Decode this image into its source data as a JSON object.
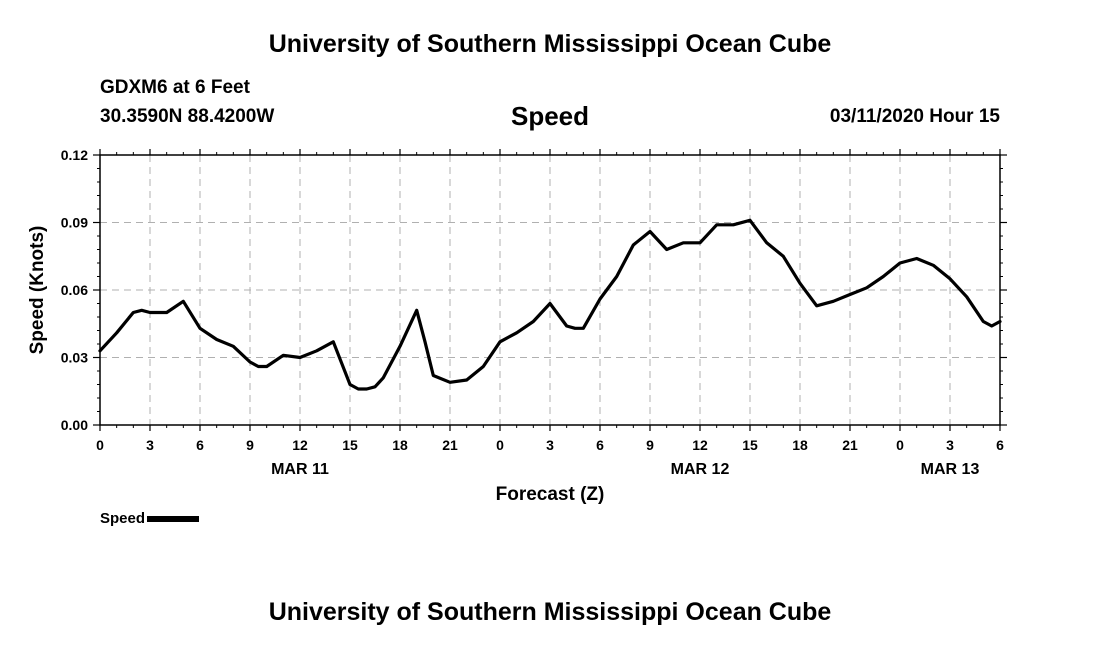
{
  "header": {
    "title_top": "University of Southern Mississippi Ocean Cube",
    "station": "GDXM6 at 6 Feet",
    "coords": "30.3590N 88.4200W",
    "variable": "Speed",
    "datetime": "03/11/2020 Hour 15"
  },
  "footer": {
    "title_bottom": "University of Southern Mississippi Ocean Cube"
  },
  "legend": {
    "label": "Speed"
  },
  "colors": {
    "line": "#000000",
    "grid": "#b0b0b0"
  },
  "chart_data": {
    "type": "line",
    "title": "Speed",
    "xlabel": "Forecast (Z)",
    "ylabel": "Speed (Knots)",
    "xlim": [
      0,
      54
    ],
    "ylim": [
      0,
      0.12
    ],
    "grid": true,
    "legend_position": "bottom-left",
    "y_ticks": [
      0,
      0.03,
      0.06,
      0.09,
      0.12
    ],
    "y_tick_labels": [
      "0.00",
      "0.03",
      "0.06",
      "0.09",
      "0.12"
    ],
    "x_ticks": [
      0,
      3,
      6,
      9,
      12,
      15,
      18,
      21,
      24,
      27,
      30,
      33,
      36,
      39,
      42,
      45,
      48,
      51,
      54
    ],
    "x_tick_labels": [
      "0",
      "3",
      "6",
      "9",
      "12",
      "15",
      "18",
      "21",
      "0",
      "3",
      "6",
      "9",
      "12",
      "15",
      "18",
      "21",
      "0",
      "3",
      "6"
    ],
    "date_labels": [
      {
        "x": 12,
        "label": "MAR 11"
      },
      {
        "x": 36,
        "label": "MAR 12"
      },
      {
        "x": 51,
        "label": "MAR 13"
      }
    ],
    "series": [
      {
        "name": "Speed",
        "x": [
          0,
          1,
          2,
          2.5,
          3,
          4,
          5,
          6,
          7,
          8,
          9,
          9.5,
          10,
          11,
          12,
          13,
          14,
          15,
          15.5,
          16,
          16.5,
          17,
          18,
          19,
          19.5,
          20,
          21,
          22,
          23,
          24,
          25,
          26,
          27,
          28,
          28.5,
          29,
          30,
          31,
          32,
          33,
          34,
          35,
          36,
          37,
          38,
          39,
          40,
          41,
          42,
          43,
          44,
          45,
          46,
          47,
          48,
          49,
          50,
          51,
          52,
          53,
          53.5,
          54
        ],
        "values": [
          0.033,
          0.041,
          0.05,
          0.051,
          0.05,
          0.05,
          0.055,
          0.043,
          0.038,
          0.035,
          0.028,
          0.026,
          0.026,
          0.031,
          0.03,
          0.033,
          0.037,
          0.018,
          0.016,
          0.016,
          0.017,
          0.021,
          0.035,
          0.051,
          0.037,
          0.022,
          0.019,
          0.02,
          0.026,
          0.037,
          0.041,
          0.046,
          0.054,
          0.044,
          0.043,
          0.043,
          0.056,
          0.066,
          0.08,
          0.086,
          0.078,
          0.081,
          0.081,
          0.089,
          0.089,
          0.091,
          0.081,
          0.075,
          0.063,
          0.053,
          0.055,
          0.058,
          0.061,
          0.066,
          0.072,
          0.074,
          0.071,
          0.065,
          0.057,
          0.046,
          0.044,
          0.046
        ]
      }
    ]
  }
}
